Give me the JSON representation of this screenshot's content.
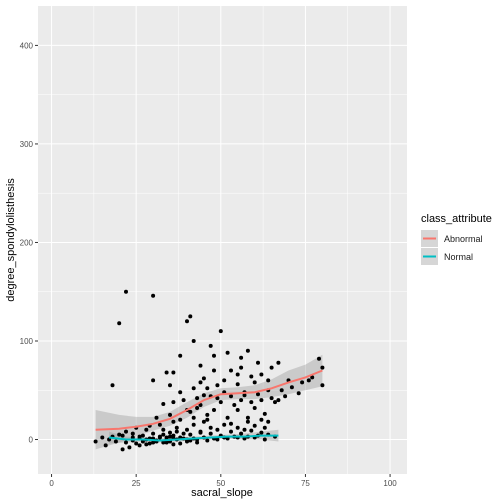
{
  "chart_data": {
    "type": "scatter",
    "xlabel": "sacral_slope",
    "ylabel": "degree_spondylolisthesis",
    "xlim": [
      -4,
      105
    ],
    "ylim": [
      -35,
      440
    ],
    "x_ticks": [
      0,
      25,
      50,
      75,
      100
    ],
    "y_ticks": [
      0,
      100,
      200,
      300,
      400
    ],
    "x_tick_labels": [
      "0",
      "25",
      "50",
      "75",
      "100"
    ],
    "y_tick_labels": [
      "0",
      "100",
      "200",
      "300",
      "400"
    ],
    "grid": true,
    "legend": {
      "title": "class_attribute",
      "position": "right",
      "entries": [
        {
          "label": "Abnormal",
          "color": "#f8766d"
        },
        {
          "label": "Normal",
          "color": "#00bfc4"
        }
      ]
    },
    "colors": {
      "panel_bg": "#ebebeb",
      "grid": "#ffffff",
      "band": "#999999",
      "points": "#000000",
      "abnormal": "#f8766d",
      "normal": "#00bfc4"
    },
    "points": [
      [
        22,
        150
      ],
      [
        20,
        118
      ],
      [
        30,
        146
      ],
      [
        18,
        55
      ],
      [
        41,
        125
      ],
      [
        40,
        120
      ],
      [
        50,
        110
      ],
      [
        42,
        100
      ],
      [
        38,
        85
      ],
      [
        47,
        95
      ],
      [
        58,
        90
      ],
      [
        52,
        88
      ],
      [
        34,
        68
      ],
      [
        36,
        68
      ],
      [
        45,
        62
      ],
      [
        53,
        70
      ],
      [
        61,
        78
      ],
      [
        67,
        78
      ],
      [
        79,
        82
      ],
      [
        80,
        73
      ],
      [
        65,
        73
      ],
      [
        56,
        73
      ],
      [
        44,
        75
      ],
      [
        30,
        60
      ],
      [
        35,
        55
      ],
      [
        42,
        52
      ],
      [
        46,
        52
      ],
      [
        49,
        55
      ],
      [
        55,
        56
      ],
      [
        60,
        58
      ],
      [
        70,
        60
      ],
      [
        76,
        60
      ],
      [
        80,
        55
      ],
      [
        64,
        50
      ],
      [
        57,
        45
      ],
      [
        51,
        48
      ],
      [
        47,
        44
      ],
      [
        43,
        42
      ],
      [
        39,
        40
      ],
      [
        36,
        38
      ],
      [
        33,
        36
      ],
      [
        44,
        35
      ],
      [
        54,
        35
      ],
      [
        60,
        32
      ],
      [
        66,
        38
      ],
      [
        55,
        30
      ],
      [
        48,
        30
      ],
      [
        41,
        28
      ],
      [
        35,
        25
      ],
      [
        31,
        22
      ],
      [
        38,
        20
      ],
      [
        45,
        18
      ],
      [
        52,
        22
      ],
      [
        58,
        22
      ],
      [
        63,
        26
      ],
      [
        67,
        40
      ],
      [
        50,
        38
      ],
      [
        46,
        25
      ],
      [
        42,
        15
      ],
      [
        37,
        12
      ],
      [
        32,
        15
      ],
      [
        28,
        10
      ],
      [
        25,
        12
      ],
      [
        22,
        8
      ],
      [
        20,
        5
      ],
      [
        18,
        3
      ],
      [
        15,
        2
      ],
      [
        13,
        -2
      ],
      [
        16,
        -6
      ],
      [
        21,
        -10
      ],
      [
        23,
        -8
      ],
      [
        26,
        -6
      ],
      [
        29,
        -4
      ],
      [
        31,
        -2
      ],
      [
        34,
        -3
      ],
      [
        36,
        -5
      ],
      [
        38,
        -4
      ],
      [
        40,
        -2
      ],
      [
        43,
        -3
      ],
      [
        46,
        -1
      ],
      [
        49,
        0
      ],
      [
        52,
        1
      ],
      [
        55,
        2
      ],
      [
        58,
        3
      ],
      [
        61,
        4
      ],
      [
        64,
        5
      ],
      [
        66,
        3
      ],
      [
        27,
        4
      ],
      [
        30,
        6
      ],
      [
        33,
        5
      ],
      [
        35,
        7
      ],
      [
        37,
        8
      ],
      [
        39,
        6
      ],
      [
        41,
        5
      ],
      [
        44,
        7
      ],
      [
        47,
        6
      ],
      [
        50,
        4
      ],
      [
        53,
        8
      ],
      [
        56,
        6
      ],
      [
        59,
        9
      ],
      [
        62,
        7
      ],
      [
        24,
        2
      ],
      [
        26,
        1
      ],
      [
        28,
        0
      ],
      [
        30,
        1
      ],
      [
        32,
        2
      ],
      [
        34,
        0
      ],
      [
        36,
        1
      ],
      [
        38,
        2
      ],
      [
        40,
        0
      ],
      [
        42,
        1
      ],
      [
        45,
        2
      ],
      [
        48,
        1
      ],
      [
        51,
        2
      ],
      [
        54,
        3
      ],
      [
        57,
        1
      ],
      [
        60,
        2
      ],
      [
        63,
        0
      ],
      [
        17,
        0
      ],
      [
        19,
        -2
      ],
      [
        22,
        -3
      ],
      [
        24,
        -1
      ],
      [
        27,
        -2
      ],
      [
        29,
        1
      ],
      [
        31,
        -1
      ],
      [
        33,
        -3
      ],
      [
        35,
        -2
      ],
      [
        37,
        0
      ],
      [
        39,
        1
      ],
      [
        41,
        -1
      ],
      [
        43,
        0
      ],
      [
        35,
        3
      ],
      [
        36,
        4
      ],
      [
        34,
        2
      ],
      [
        32,
        3
      ],
      [
        30,
        -3
      ],
      [
        28,
        -5
      ],
      [
        26,
        3
      ],
      [
        25,
        -4
      ],
      [
        45,
        45
      ],
      [
        49,
        42
      ],
      [
        53,
        44
      ],
      [
        57,
        48
      ],
      [
        61,
        46
      ],
      [
        65,
        42
      ],
      [
        69,
        44
      ],
      [
        73,
        47
      ],
      [
        77,
        63
      ],
      [
        74,
        58
      ],
      [
        71,
        53
      ],
      [
        68,
        50
      ],
      [
        62,
        40
      ],
      [
        59,
        38
      ],
      [
        56,
        40
      ],
      [
        40,
        30
      ],
      [
        43,
        32
      ],
      [
        38,
        48
      ],
      [
        48,
        70
      ],
      [
        55,
        66
      ],
      [
        51,
        60
      ],
      [
        44,
        58
      ],
      [
        59,
        64
      ],
      [
        62,
        66
      ],
      [
        64,
        60
      ],
      [
        46,
        20
      ],
      [
        51,
        15
      ],
      [
        55,
        12
      ],
      [
        60,
        14
      ],
      [
        64,
        18
      ],
      [
        42,
        22
      ],
      [
        36,
        18
      ],
      [
        33,
        10
      ],
      [
        29,
        14
      ],
      [
        24,
        6
      ],
      [
        21,
        4
      ],
      [
        47,
        12
      ],
      [
        53,
        16
      ],
      [
        58,
        18
      ],
      [
        62,
        20
      ],
      [
        40,
        10
      ],
      [
        44,
        8
      ],
      [
        49,
        10
      ],
      [
        57,
        10
      ],
      [
        63,
        12
      ],
      [
        48,
        85
      ],
      [
        56,
        83
      ]
    ],
    "series": [
      {
        "name": "Abnormal",
        "x": [
          13,
          20,
          25,
          30,
          35,
          40,
          45,
          50,
          55,
          60,
          65,
          70,
          75,
          80
        ],
        "y": [
          10,
          11,
          13,
          16,
          21,
          30,
          40,
          46,
          47,
          48,
          52,
          58,
          63,
          70
        ],
        "lower": [
          -10,
          -3,
          3,
          9,
          14,
          22,
          33,
          40,
          41,
          41,
          43,
          46,
          50,
          54
        ],
        "upper": [
          30,
          25,
          23,
          23,
          28,
          38,
          47,
          52,
          53,
          55,
          61,
          70,
          76,
          86
        ]
      },
      {
        "name": "Normal",
        "x": [
          17,
          22,
          27,
          32,
          37,
          42,
          47,
          52,
          57,
          62,
          67
        ],
        "y": [
          2,
          0,
          0,
          -1,
          0,
          1,
          2,
          3,
          3,
          4,
          4
        ],
        "lower": [
          -4,
          -3,
          -2,
          -3,
          -2,
          -1,
          0,
          1,
          0,
          0,
          -2
        ],
        "upper": [
          8,
          3,
          2,
          1,
          2,
          3,
          4,
          5,
          6,
          8,
          10
        ]
      }
    ]
  }
}
